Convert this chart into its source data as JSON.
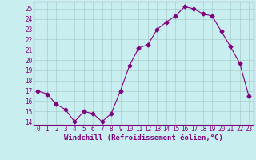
{
  "x": [
    0,
    1,
    2,
    3,
    4,
    5,
    6,
    7,
    8,
    9,
    10,
    11,
    12,
    13,
    14,
    15,
    16,
    17,
    18,
    19,
    20,
    21,
    22,
    23
  ],
  "y": [
    17.0,
    16.7,
    15.7,
    15.2,
    14.0,
    15.0,
    14.8,
    14.0,
    14.8,
    17.0,
    19.5,
    21.2,
    21.5,
    23.0,
    23.7,
    24.3,
    25.2,
    25.0,
    24.5,
    24.3,
    22.8,
    21.3,
    19.7,
    16.5
  ],
  "line_color": "#800080",
  "marker": "D",
  "marker_size": 2.5,
  "bg_color": "#c8eef0",
  "grid_color": "#aacccc",
  "xlabel": "Windchill (Refroidissement éolien,°C)",
  "ylabel": "",
  "ylim": [
    13.7,
    25.7
  ],
  "xlim": [
    -0.5,
    23.5
  ],
  "yticks": [
    14,
    15,
    16,
    17,
    18,
    19,
    20,
    21,
    22,
    23,
    24,
    25
  ],
  "xticks": [
    0,
    1,
    2,
    3,
    4,
    5,
    6,
    7,
    8,
    9,
    10,
    11,
    12,
    13,
    14,
    15,
    16,
    17,
    18,
    19,
    20,
    21,
    22,
    23
  ],
  "tick_fontsize": 5.5,
  "xlabel_fontsize": 6.5
}
